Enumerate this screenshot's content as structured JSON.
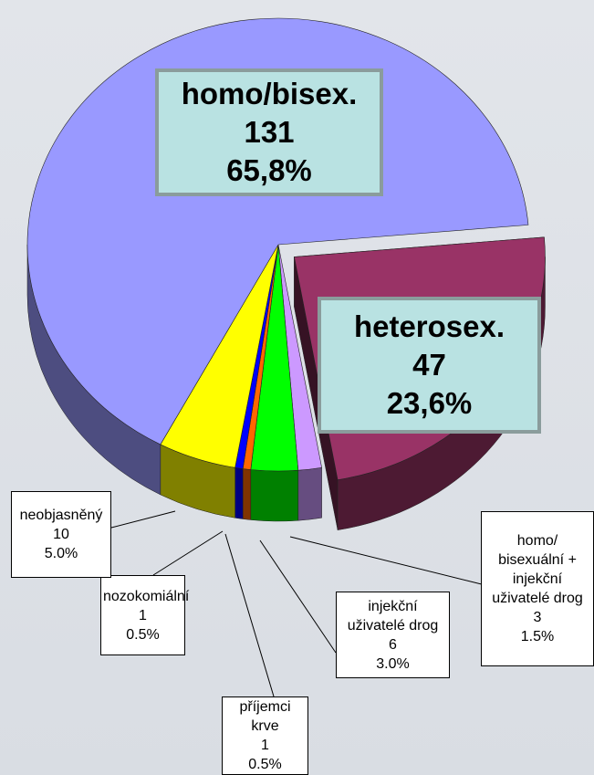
{
  "chart_data": {
    "type": "pie",
    "categories": [
      "heterosex.",
      "homo/ bisexuální + injekční uživatelé drog",
      "injekční uživatelé drog",
      "příjemci krve",
      "nozokomiální",
      "neobjasněný",
      "homo/bisex."
    ],
    "values": [
      47,
      3,
      6,
      1,
      1,
      10,
      131
    ],
    "percents": [
      23.6,
      1.5,
      3.0,
      0.5,
      0.5,
      5.0,
      65.8
    ],
    "percent_labels": [
      "23,6%",
      "1.5%",
      "3.0%",
      "0.5%",
      "0.5%",
      "5.0%",
      "65,8%"
    ],
    "colors": [
      "#993366",
      "#cc99ff",
      "#00ff00",
      "#ff6600",
      "#0000ff",
      "#ffff00",
      "#9999ff"
    ],
    "explode": [
      true,
      false,
      false,
      false,
      false,
      false,
      false
    ]
  }
}
